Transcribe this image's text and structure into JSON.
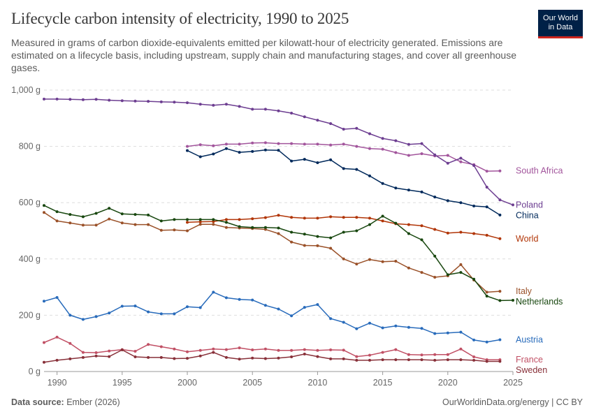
{
  "header": {
    "title": "Lifecycle carbon intensity of electricity, 1990 to 2025",
    "subtitle": "Measured in grams of carbon dioxide-equivalents emitted per kilowatt-hour of electricity generated. Emissions are estimated on a lifecycle basis, including upstream, supply chain and manufacturing stages, and cover all greenhouse gases.",
    "logo_line1": "Our World",
    "logo_line2": "in Data"
  },
  "footer": {
    "source_label": "Data source:",
    "source_value": "Ember (2026)",
    "right": "OurWorldinData.org/energy | CC BY"
  },
  "colors": {
    "grid": "#dddddd",
    "axis": "#999999"
  },
  "chart_data": {
    "type": "line",
    "title": "Lifecycle carbon intensity of electricity, 1990 to 2025",
    "xlim": [
      1989,
      2025
    ],
    "ylim": [
      0,
      1000
    ],
    "x_ticks": [
      1990,
      1995,
      2000,
      2005,
      2010,
      2015,
      2020,
      2025
    ],
    "x_tick_labels": [
      "1990",
      "1995",
      "2000",
      "2005",
      "2010",
      "2015",
      "2020",
      "2025"
    ],
    "y_ticks": [
      0,
      200,
      400,
      600,
      800,
      1000
    ],
    "y_tick_labels": [
      "0 g",
      "200 g",
      "400 g",
      "600 g",
      "800 g",
      "1,000 g"
    ],
    "grid": true,
    "legend": "right-end labels",
    "series": [
      {
        "name": "South Africa",
        "color": "#a2559c",
        "x_start": 2000,
        "values": [
          800,
          806,
          802,
          808,
          808,
          812,
          813,
          810,
          810,
          808,
          808,
          805,
          808,
          800,
          792,
          790,
          778,
          768,
          774,
          766,
          768,
          745,
          735,
          712,
          713
        ]
      },
      {
        "name": "Poland",
        "color": "#6d3e91",
        "x_start": 1989,
        "values": [
          968,
          968,
          967,
          966,
          967,
          964,
          962,
          961,
          960,
          958,
          957,
          955,
          950,
          946,
          950,
          942,
          932,
          932,
          926,
          918,
          905,
          893,
          881,
          861,
          864,
          845,
          828,
          820,
          807,
          810,
          770,
          740,
          758,
          732,
          655,
          610,
          592
        ]
      },
      {
        "name": "China",
        "color": "#00295b",
        "x_start": 2000,
        "values": [
          785,
          763,
          773,
          792,
          779,
          782,
          787,
          786,
          748,
          754,
          742,
          752,
          721,
          718,
          695,
          668,
          652,
          645,
          638,
          620,
          607,
          600,
          588,
          585,
          556
        ]
      },
      {
        "name": "World",
        "color": "#b13507",
        "x_start": 2000,
        "values": [
          530,
          532,
          533,
          540,
          540,
          543,
          547,
          555,
          548,
          545,
          545,
          550,
          548,
          548,
          545,
          535,
          525,
          522,
          518,
          505,
          492,
          495,
          490,
          484,
          472
        ]
      },
      {
        "name": "Italy",
        "color": "#9a5129",
        "x_start": 1989,
        "values": [
          565,
          535,
          528,
          520,
          520,
          542,
          528,
          522,
          522,
          502,
          503,
          500,
          523,
          523,
          512,
          510,
          508,
          505,
          490,
          460,
          448,
          447,
          438,
          400,
          382,
          398,
          390,
          392,
          368,
          352,
          335,
          340,
          380,
          325,
          282,
          285
        ]
      },
      {
        "name": "Netherlands",
        "color": "#18470f",
        "x_start": 1989,
        "values": [
          590,
          568,
          558,
          550,
          562,
          580,
          560,
          558,
          556,
          535,
          540,
          540,
          540,
          540,
          530,
          515,
          512,
          512,
          510,
          495,
          488,
          480,
          475,
          495,
          500,
          522,
          552,
          527,
          490,
          468,
          410,
          344,
          352,
          328,
          268,
          252,
          253
        ]
      },
      {
        "name": "Austria",
        "color": "#286bbb",
        "x_start": 1989,
        "values": [
          250,
          263,
          200,
          185,
          195,
          208,
          232,
          233,
          212,
          205,
          205,
          230,
          227,
          282,
          262,
          256,
          254,
          235,
          222,
          198,
          228,
          238,
          188,
          175,
          152,
          172,
          155,
          162,
          157,
          153,
          135,
          137,
          140,
          112,
          105,
          113
        ]
      },
      {
        "name": "France",
        "color": "#c15065",
        "x_start": 1989,
        "values": [
          103,
          122,
          100,
          68,
          67,
          73,
          78,
          72,
          96,
          88,
          80,
          70,
          75,
          80,
          78,
          84,
          77,
          80,
          75,
          75,
          78,
          75,
          77,
          76,
          53,
          58,
          68,
          78,
          60,
          59,
          60,
          60,
          80,
          52,
          42,
          42
        ]
      },
      {
        "name": "Sweden",
        "color": "#883039",
        "x_start": 1989,
        "values": [
          33,
          40,
          45,
          50,
          55,
          53,
          77,
          52,
          50,
          50,
          46,
          47,
          55,
          68,
          50,
          44,
          48,
          46,
          48,
          52,
          62,
          53,
          45,
          45,
          40,
          40,
          42,
          42,
          42,
          42,
          40,
          42,
          42,
          40,
          36,
          36
        ]
      }
    ]
  }
}
